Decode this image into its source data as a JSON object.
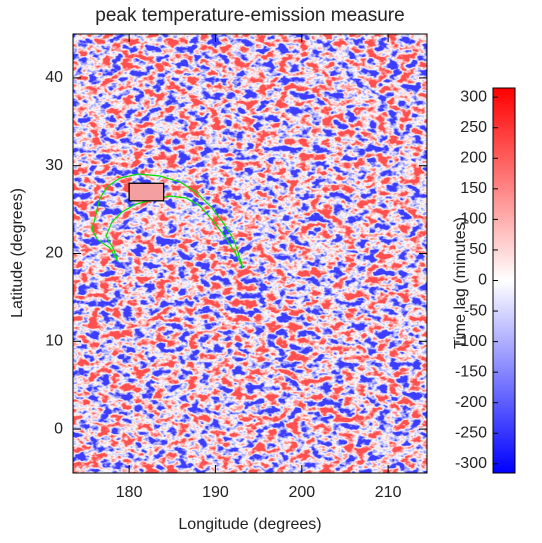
{
  "chart_data": {
    "type": "heatmap",
    "title": "peak temperature-emission measure",
    "xlabel": "Longitude (degrees)",
    "ylabel": "Latitude (degrees)",
    "xlim": [
      173.5,
      214.5
    ],
    "xticks": [
      180,
      190,
      200,
      210
    ],
    "ylim": [
      -5,
      45
    ],
    "yticks": [
      0,
      10,
      20,
      30,
      40
    ],
    "colormap": [
      "#0000ff",
      "#ffffff",
      "#ff0000"
    ],
    "colorbar": {
      "label": "Time lag (minutes)",
      "lim": [
        -315,
        315
      ],
      "ticks": [
        -300,
        -250,
        -200,
        -150,
        -100,
        -50,
        0,
        50,
        100,
        150,
        200,
        250,
        300
      ]
    },
    "region": {
      "x": [
        180,
        184
      ],
      "y": [
        26,
        28
      ],
      "color": "#000000"
    },
    "contour_color": "#00e000"
  }
}
